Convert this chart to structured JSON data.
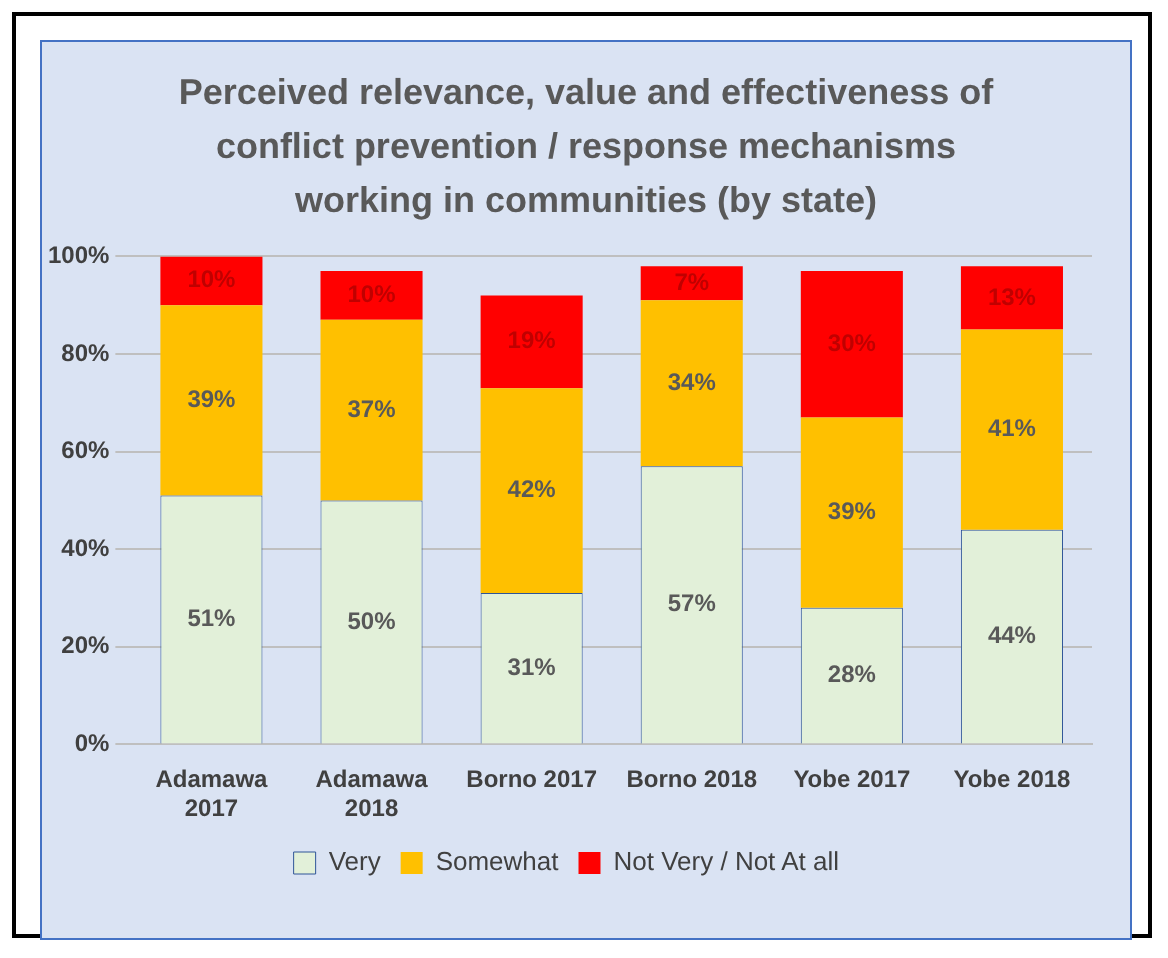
{
  "chart_data": {
    "type": "bar",
    "title": "Perceived relevance, value and effectiveness of conflict prevention / response mechanisms working in communities (by state)",
    "categories": [
      "Adamawa 2017",
      "Adamawa 2018",
      "Borno 2017",
      "Borno 2018",
      "Yobe 2017",
      "Yobe 2018"
    ],
    "stacked": true,
    "series": [
      {
        "name": "Very",
        "color": "#e2f0d9",
        "values": [
          51,
          50,
          31,
          57,
          28,
          44
        ],
        "value_labels": [
          "51%",
          "50%",
          "31%",
          "57%",
          "28%",
          "44%"
        ]
      },
      {
        "name": "Somewhat",
        "color": "#ffc000",
        "values": [
          39,
          37,
          42,
          34,
          39,
          41
        ],
        "value_labels": [
          "39%",
          "37%",
          "42%",
          "34%",
          "39%",
          "41%"
        ]
      },
      {
        "name": "Not Very / Not At all",
        "color": "#ff0000",
        "values": [
          10,
          10,
          19,
          7,
          30,
          13
        ],
        "value_labels": [
          "10%",
          "10%",
          "19%",
          "7%",
          "30%",
          "13%"
        ]
      }
    ],
    "ylim": [
      0,
      100
    ],
    "yticks": [
      {
        "value": 0,
        "label": "0%"
      },
      {
        "value": 20,
        "label": "20%"
      },
      {
        "value": 40,
        "label": "40%"
      },
      {
        "value": 60,
        "label": "60%"
      },
      {
        "value": 80,
        "label": "80%"
      },
      {
        "value": 100,
        "label": "100%"
      }
    ],
    "grid": "y",
    "legend": "bottom"
  }
}
